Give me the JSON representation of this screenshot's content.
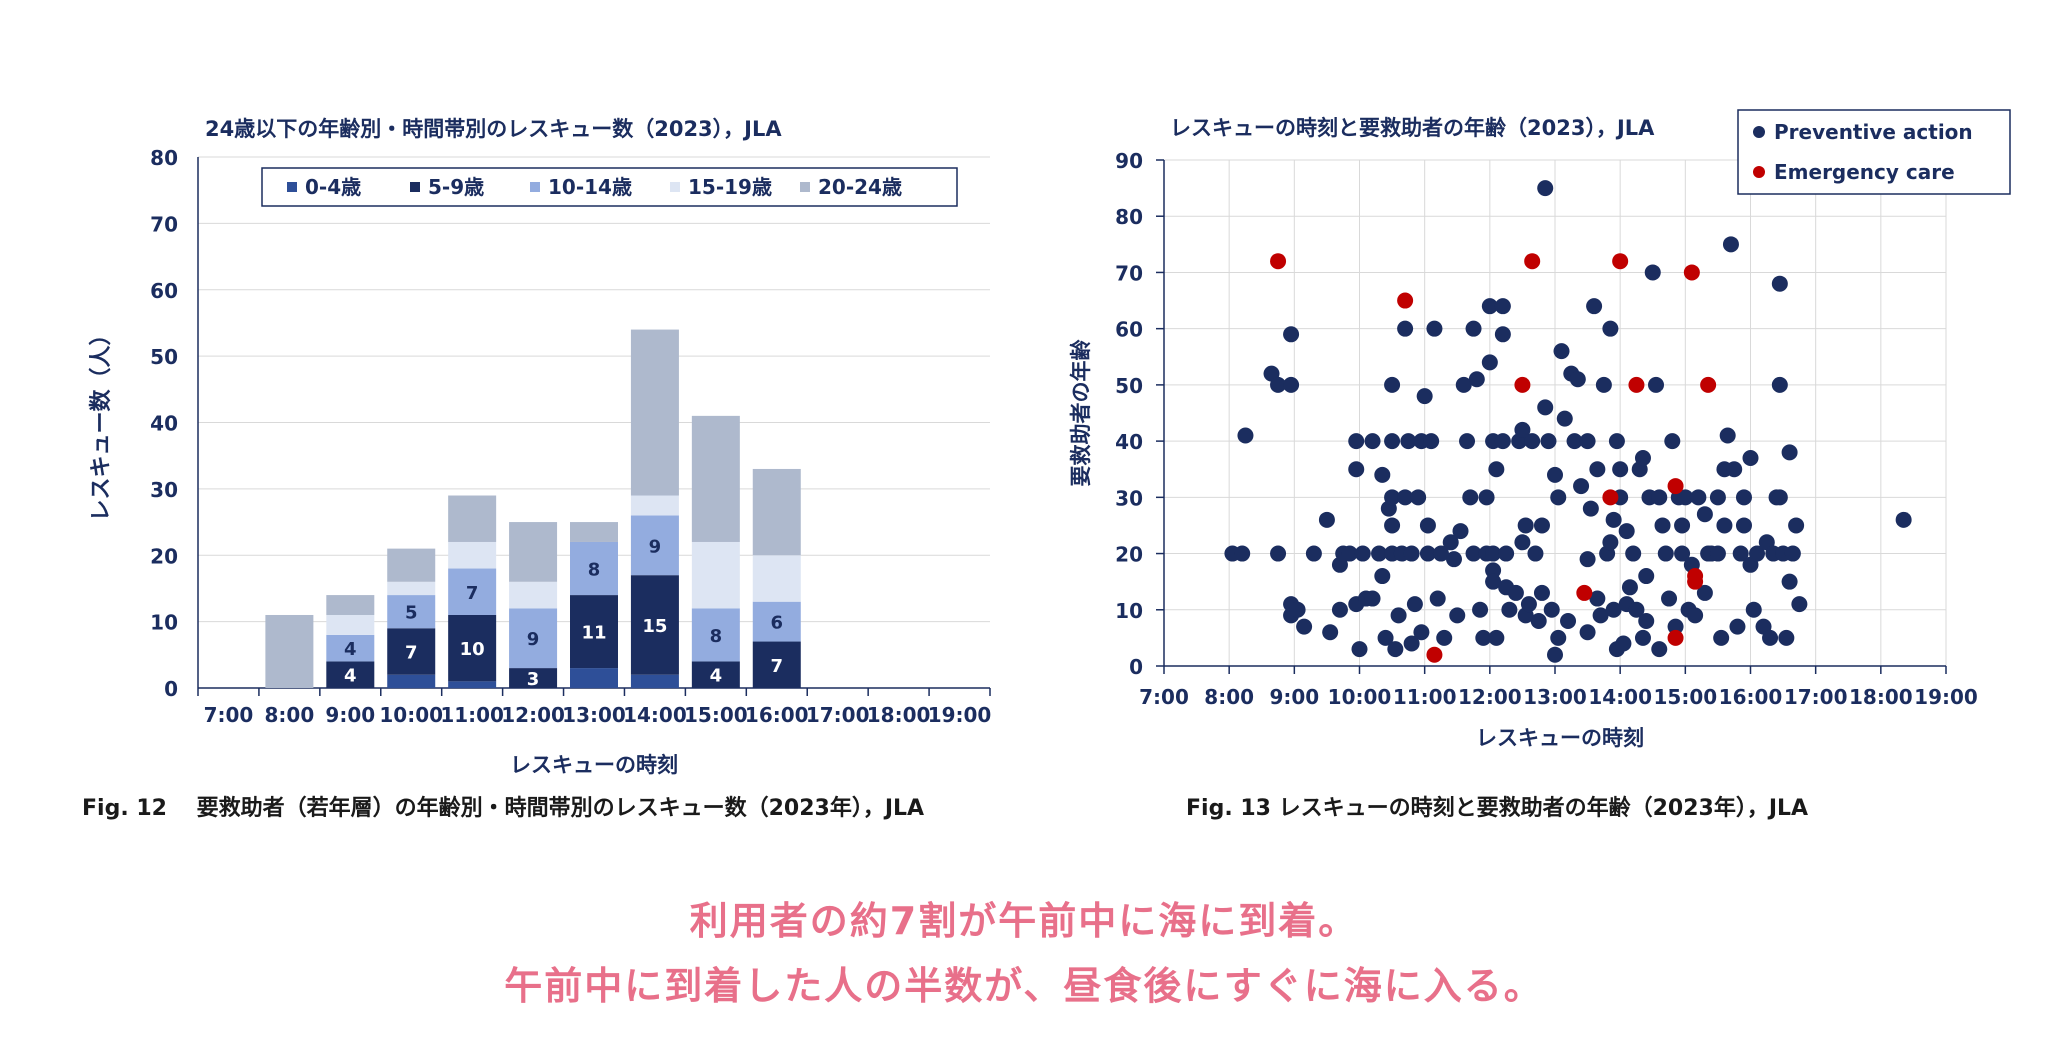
{
  "chart_data": [
    {
      "type": "bar",
      "stacked": true,
      "title": "24歳以下の年齢別・時間帯別のレスキュー数（2023），JLA",
      "xlabel": "レスキューの時刻",
      "ylabel": "レスキュー数（人）",
      "ylim": [
        0,
        80
      ],
      "yticks": [
        "0",
        "10",
        "20",
        "30",
        "40",
        "50",
        "60",
        "70",
        "80"
      ],
      "categories": [
        "7:00",
        "8:00",
        "9:00",
        "10:00",
        "11:00",
        "12:00",
        "13:00",
        "14:00",
        "15:00",
        "16:00",
        "17:00",
        "18:00",
        "19:00"
      ],
      "legend_position": "top",
      "grid": true,
      "series": [
        {
          "name": "0-4歳",
          "color": "#2e4f98",
          "values": [
            0,
            0,
            0,
            2,
            1,
            0,
            3,
            2,
            0,
            0,
            0,
            0,
            0
          ]
        },
        {
          "name": "5-9歳",
          "color": "#1b2d5f",
          "values": [
            0,
            0,
            4,
            7,
            10,
            3,
            11,
            15,
            4,
            7,
            0,
            0,
            0
          ]
        },
        {
          "name": "10-14歳",
          "color": "#93acdf",
          "values": [
            0,
            0,
            4,
            5,
            7,
            9,
            8,
            9,
            8,
            6,
            0,
            0,
            0
          ]
        },
        {
          "name": "15-19歳",
          "color": "#dde5f3",
          "values": [
            0,
            0,
            3,
            2,
            4,
            4,
            0,
            3,
            10,
            7,
            0,
            0,
            0
          ]
        },
        {
          "name": "20-24歳",
          "color": "#aeb9cd",
          "values": [
            0,
            11,
            3,
            5,
            7,
            9,
            3,
            25,
            19,
            13,
            0,
            0,
            0
          ]
        }
      ],
      "data_labels": [
        {
          "series": "5-9歳",
          "category": "9:00",
          "text": "4"
        },
        {
          "series": "10-14歳",
          "category": "9:00",
          "text": "4"
        },
        {
          "series": "5-9歳",
          "category": "10:00",
          "text": "7"
        },
        {
          "series": "10-14歳",
          "category": "10:00",
          "text": "5"
        },
        {
          "series": "5-9歳",
          "category": "11:00",
          "text": "10"
        },
        {
          "series": "10-14歳",
          "category": "11:00",
          "text": "7"
        },
        {
          "series": "5-9歳",
          "category": "12:00",
          "text": "3"
        },
        {
          "series": "10-14歳",
          "category": "12:00",
          "text": "9"
        },
        {
          "series": "5-9歳",
          "category": "13:00",
          "text": "11"
        },
        {
          "series": "10-14歳",
          "category": "13:00",
          "text": "8"
        },
        {
          "series": "5-9歳",
          "category": "14:00",
          "text": "15"
        },
        {
          "series": "10-14歳",
          "category": "14:00",
          "text": "9"
        },
        {
          "series": "5-9歳",
          "category": "15:00",
          "text": "4"
        },
        {
          "series": "10-14歳",
          "category": "15:00",
          "text": "8"
        },
        {
          "series": "5-9歳",
          "category": "16:00",
          "text": "7"
        },
        {
          "series": "10-14歳",
          "category": "16:00",
          "text": "6"
        }
      ]
    },
    {
      "type": "scatter",
      "title": "レスキューの時刻と要救助者の年齢（2023），JLA",
      "xlabel": "レスキューの時刻",
      "ylabel": "要救助者の年齢",
      "xlim": [
        7,
        19
      ],
      "ylim": [
        0,
        90
      ],
      "xticks": [
        "7:00",
        "8:00",
        "9:00",
        "10:00",
        "11:00",
        "12:00",
        "13:00",
        "14:00",
        "15:00",
        "16:00",
        "17:00",
        "18:00",
        "19:00"
      ],
      "yticks": [
        "0",
        "10",
        "20",
        "30",
        "40",
        "50",
        "60",
        "70",
        "80",
        "90"
      ],
      "legend_position": "top-right",
      "grid": true,
      "series": [
        {
          "name": "Preventive action",
          "color": "#1b2d5f",
          "points": [
            [
              8.05,
              20
            ],
            [
              8.2,
              20
            ],
            [
              8.25,
              41
            ],
            [
              8.65,
              52
            ],
            [
              8.75,
              50
            ],
            [
              8.75,
              20
            ],
            [
              8.95,
              59
            ],
            [
              8.95,
              50
            ],
            [
              8.95,
              11
            ],
            [
              8.95,
              9
            ],
            [
              9.05,
              10
            ],
            [
              9.15,
              7
            ],
            [
              9.3,
              20
            ],
            [
              9.5,
              26
            ],
            [
              9.55,
              6
            ],
            [
              9.7,
              10
            ],
            [
              9.7,
              18
            ],
            [
              9.75,
              20
            ],
            [
              9.85,
              20
            ],
            [
              9.95,
              40
            ],
            [
              9.95,
              35
            ],
            [
              9.95,
              11
            ],
            [
              10.0,
              3
            ],
            [
              10.05,
              20
            ],
            [
              10.1,
              12
            ],
            [
              10.2,
              40
            ],
            [
              10.2,
              12
            ],
            [
              10.3,
              20
            ],
            [
              10.35,
              16
            ],
            [
              10.35,
              34
            ],
            [
              10.4,
              5
            ],
            [
              10.45,
              28
            ],
            [
              10.5,
              25
            ],
            [
              10.5,
              30
            ],
            [
              10.5,
              50
            ],
            [
              10.5,
              40
            ],
            [
              10.5,
              20
            ],
            [
              10.55,
              3
            ],
            [
              10.6,
              9
            ],
            [
              10.65,
              20
            ],
            [
              10.7,
              60
            ],
            [
              10.7,
              30
            ],
            [
              10.75,
              40
            ],
            [
              10.8,
              20
            ],
            [
              10.8,
              4
            ],
            [
              10.85,
              11
            ],
            [
              10.9,
              30
            ],
            [
              10.95,
              40
            ],
            [
              10.95,
              6
            ],
            [
              11.0,
              48
            ],
            [
              11.05,
              25
            ],
            [
              11.05,
              20
            ],
            [
              11.1,
              40
            ],
            [
              11.15,
              60
            ],
            [
              11.2,
              12
            ],
            [
              11.25,
              20
            ],
            [
              11.3,
              5
            ],
            [
              11.4,
              22
            ],
            [
              11.45,
              19
            ],
            [
              11.5,
              9
            ],
            [
              11.55,
              24
            ],
            [
              11.6,
              50
            ],
            [
              11.65,
              40
            ],
            [
              11.7,
              30
            ],
            [
              11.75,
              60
            ],
            [
              11.75,
              20
            ],
            [
              11.8,
              51
            ],
            [
              11.85,
              10
            ],
            [
              11.9,
              5
            ],
            [
              11.95,
              30
            ],
            [
              11.95,
              20
            ],
            [
              12.0,
              54
            ],
            [
              12.0,
              64
            ],
            [
              12.05,
              40
            ],
            [
              12.05,
              20
            ],
            [
              12.05,
              17
            ],
            [
              12.05,
              15
            ],
            [
              12.1,
              35
            ],
            [
              12.1,
              5
            ],
            [
              12.2,
              64
            ],
            [
              12.2,
              59
            ],
            [
              12.2,
              40
            ],
            [
              12.25,
              20
            ],
            [
              12.25,
              14
            ],
            [
              12.3,
              10
            ],
            [
              12.4,
              13
            ],
            [
              12.45,
              40
            ],
            [
              12.5,
              42
            ],
            [
              12.5,
              22
            ],
            [
              12.55,
              25
            ],
            [
              12.55,
              9
            ],
            [
              12.6,
              11
            ],
            [
              12.65,
              40
            ],
            [
              12.7,
              20
            ],
            [
              12.75,
              8
            ],
            [
              12.8,
              25
            ],
            [
              12.8,
              13
            ],
            [
              12.85,
              85
            ],
            [
              12.85,
              46
            ],
            [
              12.9,
              40
            ],
            [
              12.95,
              10
            ],
            [
              13.0,
              34
            ],
            [
              13.0,
              2
            ],
            [
              13.05,
              30
            ],
            [
              13.05,
              5
            ],
            [
              13.1,
              56
            ],
            [
              13.15,
              44
            ],
            [
              13.2,
              8
            ],
            [
              13.25,
              52
            ],
            [
              13.3,
              40
            ],
            [
              13.35,
              51
            ],
            [
              13.4,
              32
            ],
            [
              13.5,
              40
            ],
            [
              13.5,
              19
            ],
            [
              13.5,
              6
            ],
            [
              13.55,
              28
            ],
            [
              13.6,
              64
            ],
            [
              13.65,
              35
            ],
            [
              13.65,
              12
            ],
            [
              13.7,
              9
            ],
            [
              13.75,
              50
            ],
            [
              13.8,
              20
            ],
            [
              13.85,
              60
            ],
            [
              13.85,
              22
            ],
            [
              13.9,
              26
            ],
            [
              13.9,
              10
            ],
            [
              13.95,
              40
            ],
            [
              13.95,
              3
            ],
            [
              14.0,
              30
            ],
            [
              14.0,
              35
            ],
            [
              14.05,
              4
            ],
            [
              14.1,
              24
            ],
            [
              14.1,
              11
            ],
            [
              14.15,
              14
            ],
            [
              14.2,
              20
            ],
            [
              14.25,
              10
            ],
            [
              14.3,
              35
            ],
            [
              14.35,
              37
            ],
            [
              14.35,
              5
            ],
            [
              14.4,
              8
            ],
            [
              14.4,
              16
            ],
            [
              14.45,
              30
            ],
            [
              14.5,
              70
            ],
            [
              14.55,
              50
            ],
            [
              14.6,
              30
            ],
            [
              14.6,
              3
            ],
            [
              14.65,
              25
            ],
            [
              14.7,
              20
            ],
            [
              14.75,
              12
            ],
            [
              14.8,
              40
            ],
            [
              14.85,
              7
            ],
            [
              14.9,
              30
            ],
            [
              14.95,
              25
            ],
            [
              14.95,
              20
            ],
            [
              15.0,
              30
            ],
            [
              15.05,
              10
            ],
            [
              15.1,
              18
            ],
            [
              15.15,
              9
            ],
            [
              15.2,
              30
            ],
            [
              15.3,
              27
            ],
            [
              15.3,
              13
            ],
            [
              15.35,
              20
            ],
            [
              15.4,
              20
            ],
            [
              15.5,
              20
            ],
            [
              15.5,
              30
            ],
            [
              15.55,
              5
            ],
            [
              15.6,
              35
            ],
            [
              15.6,
              25
            ],
            [
              15.65,
              41
            ],
            [
              15.7,
              75
            ],
            [
              15.75,
              35
            ],
            [
              15.8,
              7
            ],
            [
              15.85,
              20
            ],
            [
              15.9,
              30
            ],
            [
              15.9,
              25
            ],
            [
              16.0,
              37
            ],
            [
              16.0,
              18
            ],
            [
              16.05,
              10
            ],
            [
              16.1,
              20
            ],
            [
              16.2,
              7
            ],
            [
              16.25,
              22
            ],
            [
              16.3,
              5
            ],
            [
              16.35,
              20
            ],
            [
              16.4,
              30
            ],
            [
              16.45,
              68
            ],
            [
              16.45,
              50
            ],
            [
              16.45,
              30
            ],
            [
              16.5,
              20
            ],
            [
              16.55,
              5
            ],
            [
              16.6,
              38
            ],
            [
              16.6,
              15
            ],
            [
              16.65,
              20
            ],
            [
              16.7,
              25
            ],
            [
              16.75,
              11
            ],
            [
              18.35,
              26
            ]
          ]
        },
        {
          "name": "Emergency care",
          "color": "#c00000",
          "points": [
            [
              8.75,
              72
            ],
            [
              10.7,
              65
            ],
            [
              11.15,
              2
            ],
            [
              12.5,
              50
            ],
            [
              12.65,
              72
            ],
            [
              13.45,
              13
            ],
            [
              13.85,
              30
            ],
            [
              14.0,
              72
            ],
            [
              14.25,
              50
            ],
            [
              14.85,
              5
            ],
            [
              14.85,
              32
            ],
            [
              15.1,
              70
            ],
            [
              15.15,
              16
            ],
            [
              15.15,
              15
            ],
            [
              15.35,
              50
            ]
          ]
        }
      ]
    }
  ],
  "captions": {
    "fig12": "Fig. 12 　要救助者（若年層）の年齢別・時間帯別のレスキュー数（2023年），JLA",
    "fig13": "Fig. 13  レスキューの時刻と要救助者の年齢（2023年），JLA"
  },
  "taglines": {
    "line1": "利用者の約7割が午前中に海に到着。",
    "line2": "午前中に到着した人の半数が、昼食後にすぐに海に入る。"
  }
}
